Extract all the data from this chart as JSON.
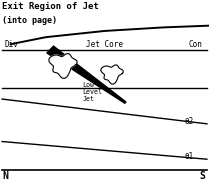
{
  "title_line1": "Exit Region of Jet",
  "title_line2": "(into page)",
  "label_div": "Div",
  "label_con": "Con",
  "label_jet_core": "Jet Core",
  "label_low_level_jet": "Low\nLevel\nJet",
  "label_theta2": "θ2",
  "label_theta1": "θ1",
  "label_N": "N",
  "label_S": "S",
  "bg_color": "#ffffff",
  "line_color": "#000000",
  "figsize": [
    2.09,
    1.82
  ],
  "dpi": 100
}
